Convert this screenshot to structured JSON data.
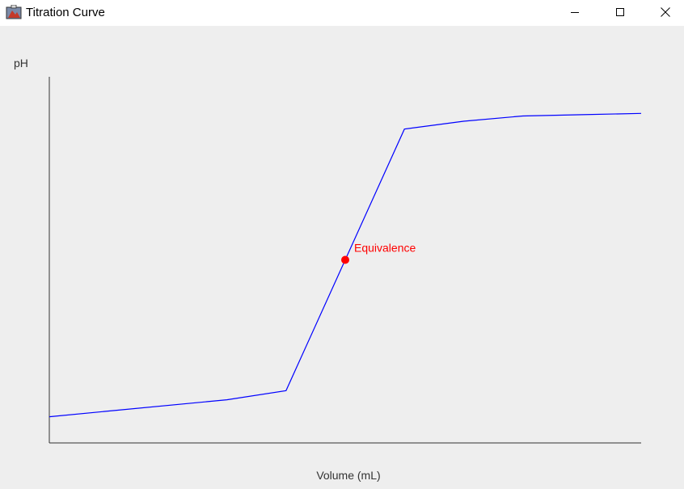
{
  "window": {
    "title": "Titration Curve",
    "icons": {
      "app": "app-icon",
      "minimize": "minimize-icon",
      "maximize": "maximize-icon",
      "close": "close-icon"
    }
  },
  "chart_data": {
    "type": "line",
    "title": "",
    "xlabel": "Volume (mL)",
    "ylabel": "pH",
    "xlim": [
      0,
      50
    ],
    "ylim": [
      0,
      14
    ],
    "grid": false,
    "series": [
      {
        "color": "#0000ff",
        "x": [
          0,
          15,
          20,
          25,
          30,
          35,
          40,
          45,
          50
        ],
        "y": [
          1.0,
          1.65,
          2.0,
          7.0,
          12.0,
          12.3,
          12.5,
          12.55,
          12.6
        ]
      }
    ],
    "annotations": [
      {
        "label": "Equivalence",
        "x": 25,
        "y": 7.0,
        "color": "#ff0000"
      }
    ]
  }
}
